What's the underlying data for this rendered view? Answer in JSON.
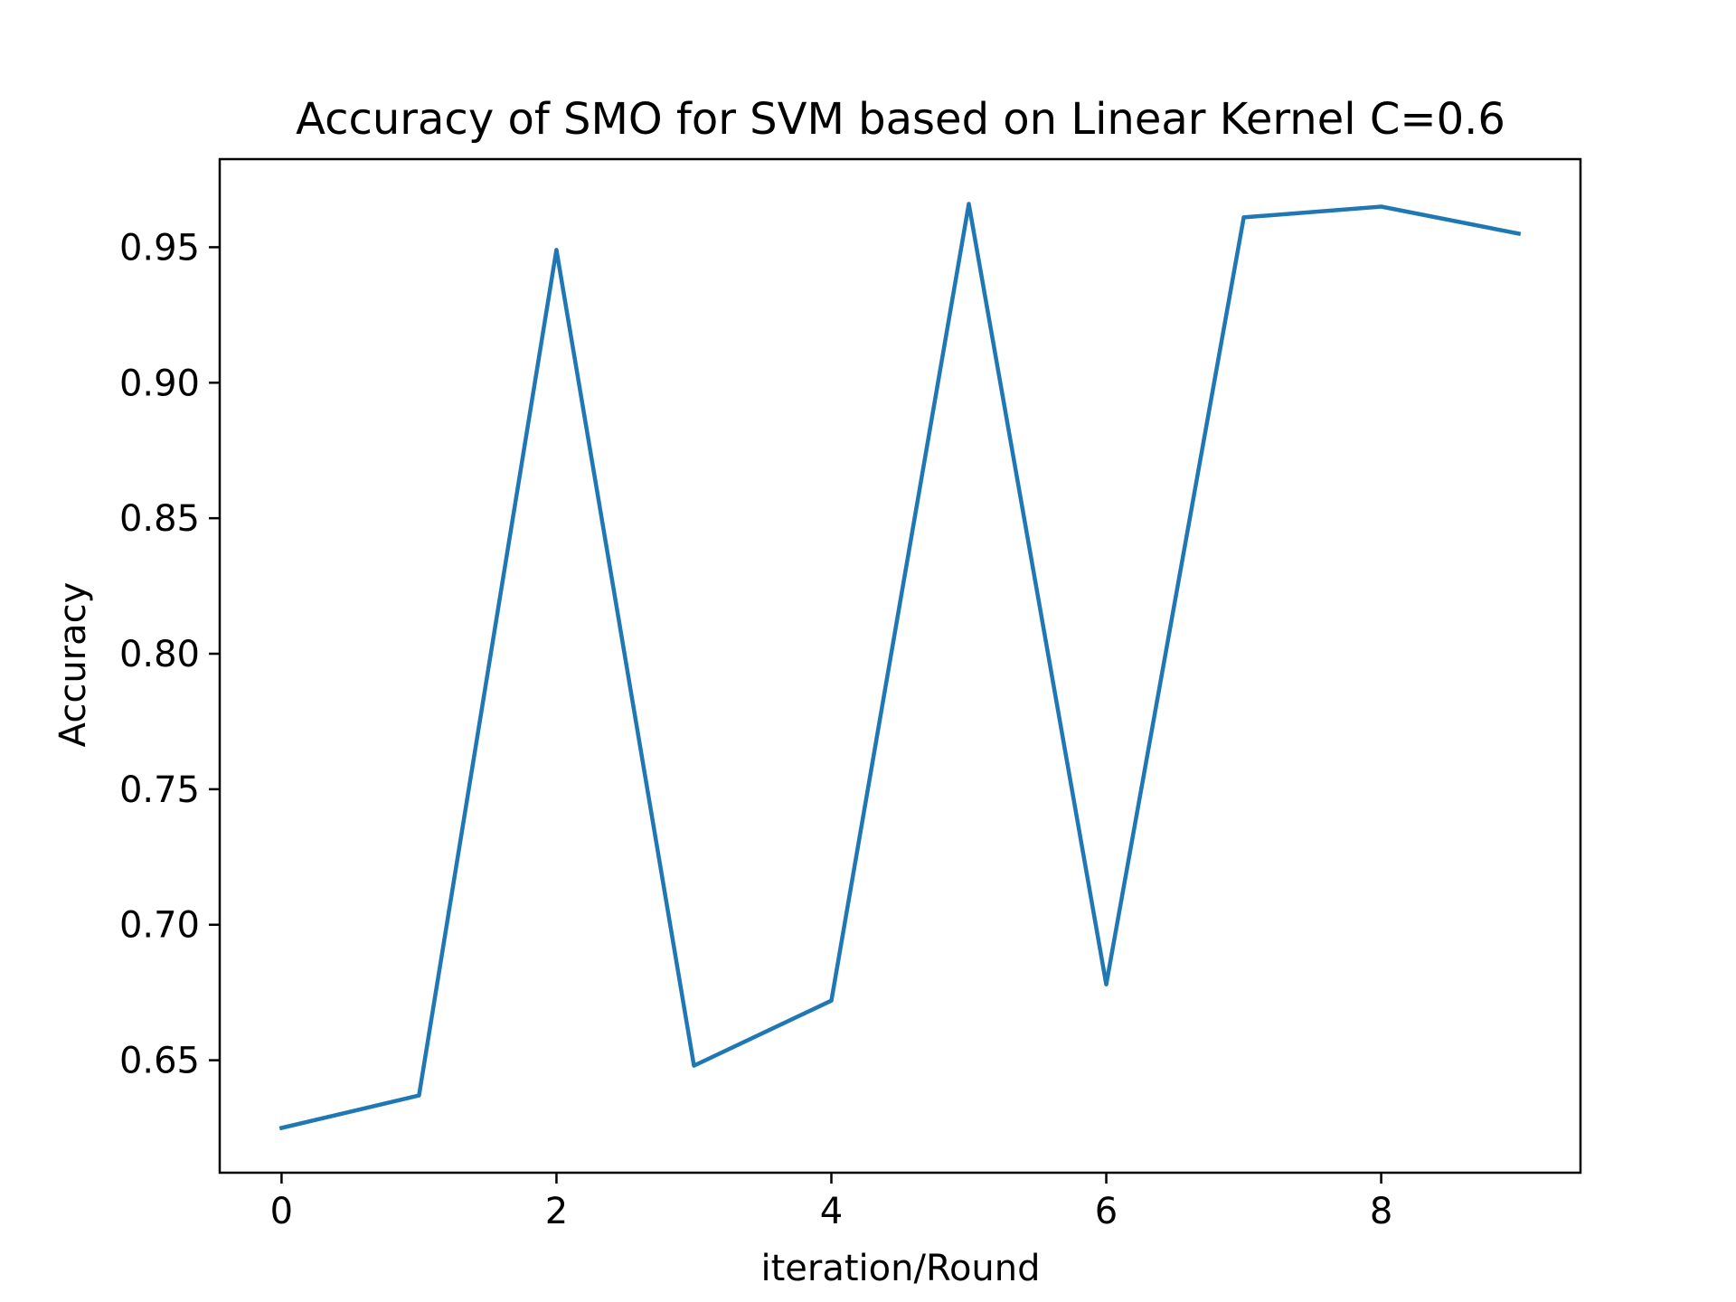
{
  "chart_data": {
    "type": "line",
    "title": "Accuracy of SMO for SVM based on Linear Kernel C=0.6",
    "xlabel": "iteration/Round",
    "ylabel": "Accuracy",
    "x": [
      0,
      1,
      2,
      3,
      4,
      5,
      6,
      7,
      8,
      9
    ],
    "series": [
      {
        "values": [
          0.625,
          0.637,
          0.949,
          0.648,
          0.672,
          0.966,
          0.678,
          0.961,
          0.965,
          0.955
        ],
        "color": "#1f77b4"
      }
    ],
    "xlim": [
      -0.45,
      9.45
    ],
    "ylim": [
      0.6085,
      0.9825
    ],
    "xticks": [
      0,
      2,
      4,
      6,
      8
    ],
    "xtick_labels": [
      "0",
      "2",
      "4",
      "6",
      "8"
    ],
    "yticks": [
      0.65,
      0.7,
      0.75,
      0.8,
      0.85,
      0.9,
      0.95
    ],
    "ytick_labels": [
      "0.65",
      "0.70",
      "0.75",
      "0.80",
      "0.85",
      "0.90",
      "0.95"
    ],
    "grid": false,
    "legend": false
  }
}
